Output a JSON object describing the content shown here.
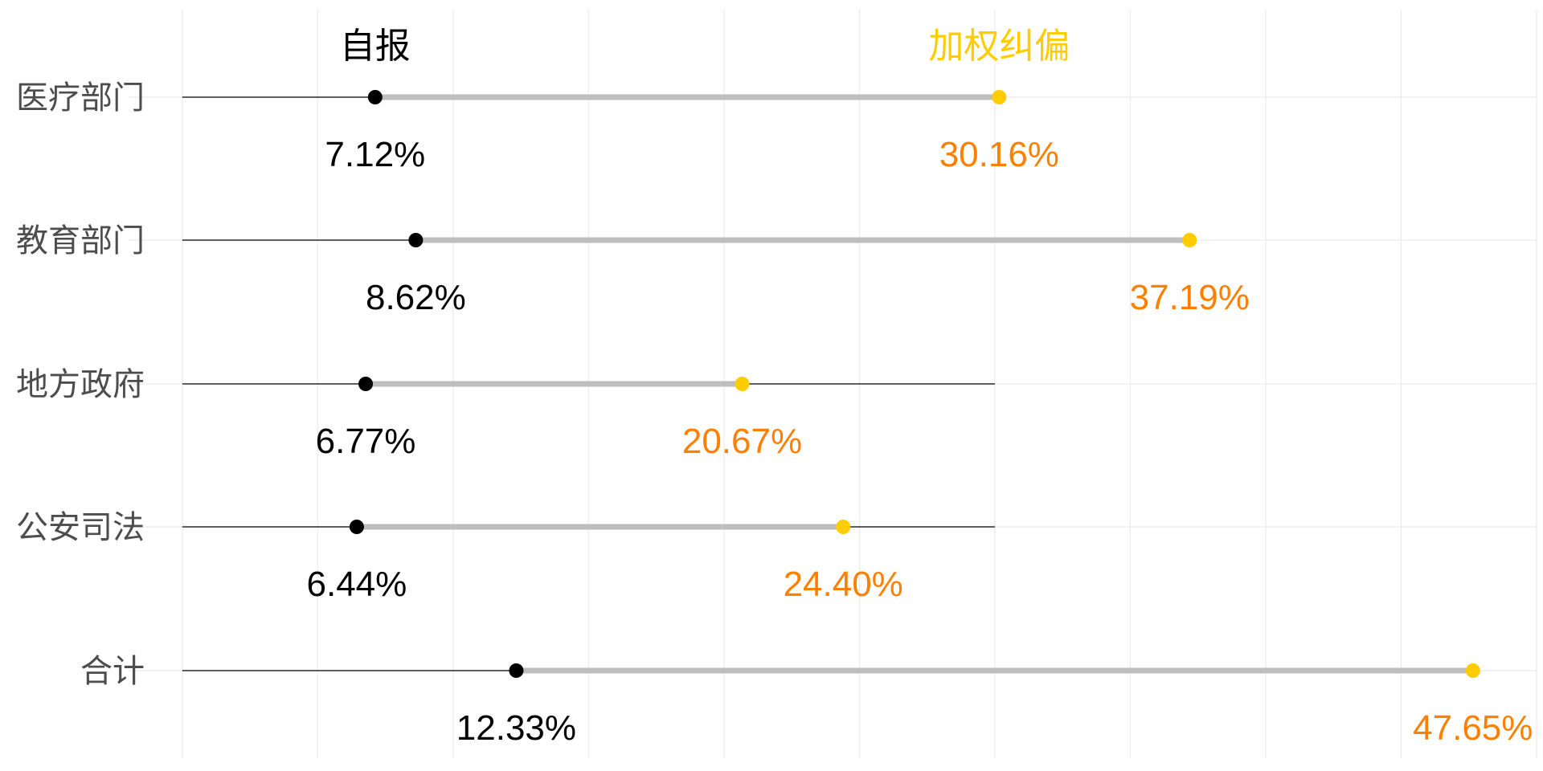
{
  "chart_data": {
    "type": "dumbbell",
    "title": "",
    "xlabel": "",
    "ylabel": "",
    "xlim": [
      -0.5,
      50
    ],
    "series_headers": [
      {
        "key": "self_report",
        "name": "自报",
        "color": "#000000"
      },
      {
        "key": "weighted",
        "name": "加权纠偏",
        "color": "#FFCC00"
      }
    ],
    "categories": [
      "医疗部门",
      "教育部门",
      "地方政府",
      "公安司法",
      "合计"
    ],
    "rows": [
      {
        "category": "医疗部门",
        "self_report": 7.12,
        "self_report_label": "7.12%",
        "weighted": 30.16,
        "weighted_label": "30.16%",
        "baseline_end": 30
      },
      {
        "category": "教育部门",
        "self_report": 8.62,
        "self_report_label": "8.62%",
        "weighted": 37.19,
        "weighted_label": "37.19%",
        "baseline_end": 30
      },
      {
        "category": "地方政府",
        "self_report": 6.77,
        "self_report_label": "6.77%",
        "weighted": 20.67,
        "weighted_label": "20.67%",
        "baseline_end": 30
      },
      {
        "category": "公安司法",
        "self_report": 6.44,
        "self_report_label": "6.44%",
        "weighted": 24.4,
        "weighted_label": "24.40%",
        "baseline_end": 30
      },
      {
        "category": "合计",
        "self_report": 12.33,
        "self_report_label": "12.33%",
        "weighted": 47.65,
        "weighted_label": "47.65%",
        "baseline_end": 30
      }
    ],
    "colors": {
      "self_point": "#000000",
      "weighted_point": "#FFCC00",
      "weighted_label": "#FF8000",
      "segment": "#BEBEBE",
      "baseline": "#000000",
      "grid": "#EBEBEB",
      "category_text": "#4d4d4d"
    },
    "grid": true,
    "legend": "none"
  }
}
